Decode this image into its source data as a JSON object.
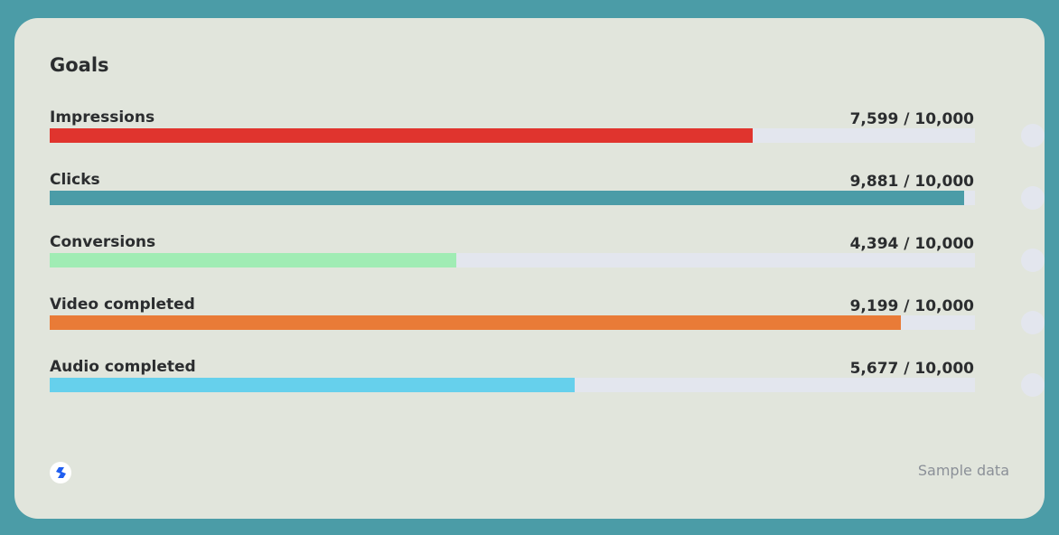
{
  "title": "Goals",
  "goals": [
    {
      "label": "Impressions",
      "value_text": "7,599 / 10,000",
      "value": 7599,
      "target": 10000,
      "color": "#e0342e"
    },
    {
      "label": "Clicks",
      "value_text": "9,881 / 10,000",
      "value": 9881,
      "target": 10000,
      "color": "#4b9ca7"
    },
    {
      "label": "Conversions",
      "value_text": "4,394 / 10,000",
      "value": 4394,
      "target": 10000,
      "color": "#a0ecb4"
    },
    {
      "label": "Video completed",
      "value_text": "9,199 / 10,000",
      "value": 9199,
      "target": 10000,
      "color": "#e97b37"
    },
    {
      "label": "Audio completed",
      "value_text": "5,677 / 10,000",
      "value": 5677,
      "target": 10000,
      "color": "#66d0ec"
    }
  ],
  "footer": {
    "logo_icon": "s-logo-icon",
    "note": "Sample data"
  }
}
